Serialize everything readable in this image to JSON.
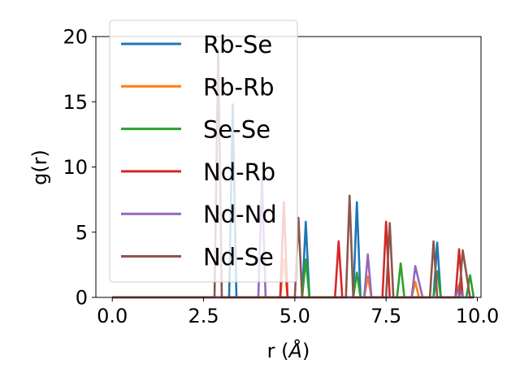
{
  "chart_data": {
    "type": "line",
    "xlabel": "r (",
    "xlabel_unit": "Å",
    "xlabel_end": ")",
    "ylabel": "g(r)",
    "xlim": [
      -0.45,
      10.1
    ],
    "ylim": [
      0,
      20
    ],
    "xticks": [
      0.0,
      2.5,
      5.0,
      7.5,
      10.0
    ],
    "xtick_labels": [
      "0.0",
      "2.5",
      "5.0",
      "7.5",
      "10.0"
    ],
    "yticks": [
      0,
      5,
      10,
      15,
      20
    ],
    "ytick_labels": [
      "0",
      "5",
      "10",
      "15",
      "20"
    ],
    "grid": false,
    "legend_position": "upper-left",
    "series": [
      {
        "name": "Rb-Se",
        "color": "#1f77b4",
        "points": [
          [
            0,
            0
          ],
          [
            3.2,
            0
          ],
          [
            3.3,
            14.8
          ],
          [
            3.4,
            0
          ],
          [
            5.2,
            0
          ],
          [
            5.3,
            5.8
          ],
          [
            5.4,
            0
          ],
          [
            6.6,
            0
          ],
          [
            6.7,
            7.3
          ],
          [
            6.8,
            0
          ],
          [
            8.8,
            0
          ],
          [
            8.9,
            4.2
          ],
          [
            9.0,
            0
          ],
          [
            9.9,
            0
          ]
        ]
      },
      {
        "name": "Rb-Rb",
        "color": "#ff7f0e",
        "points": [
          [
            0,
            0
          ],
          [
            4.6,
            0
          ],
          [
            4.7,
            2.9
          ],
          [
            4.8,
            0
          ],
          [
            6.9,
            0
          ],
          [
            7.0,
            1.6
          ],
          [
            7.1,
            0
          ],
          [
            8.2,
            0
          ],
          [
            8.3,
            1.2
          ],
          [
            8.4,
            0
          ],
          [
            9.4,
            0
          ],
          [
            9.5,
            1.0
          ],
          [
            9.6,
            0
          ],
          [
            9.9,
            0
          ]
        ]
      },
      {
        "name": "Se-Se",
        "color": "#2ca02c",
        "points": [
          [
            0,
            0
          ],
          [
            5.2,
            0
          ],
          [
            5.3,
            2.9
          ],
          [
            5.4,
            0
          ],
          [
            6.6,
            0
          ],
          [
            6.7,
            1.9
          ],
          [
            6.8,
            0
          ],
          [
            7.8,
            0
          ],
          [
            7.9,
            2.6
          ],
          [
            8.0,
            0
          ],
          [
            8.8,
            0
          ],
          [
            8.9,
            2.0
          ],
          [
            9.0,
            0
          ],
          [
            9.7,
            0
          ],
          [
            9.8,
            1.7
          ],
          [
            9.9,
            0
          ]
        ]
      },
      {
        "name": "Nd-Rb",
        "color": "#d62728",
        "points": [
          [
            0,
            0
          ],
          [
            4.6,
            0
          ],
          [
            4.7,
            7.3
          ],
          [
            4.8,
            0
          ],
          [
            6.1,
            0
          ],
          [
            6.2,
            4.3
          ],
          [
            6.3,
            0
          ],
          [
            7.4,
            0
          ],
          [
            7.5,
            5.8
          ],
          [
            7.6,
            0
          ],
          [
            9.4,
            0
          ],
          [
            9.5,
            3.7
          ],
          [
            9.6,
            0
          ],
          [
            9.9,
            0
          ]
        ]
      },
      {
        "name": "Nd-Nd",
        "color": "#9467bd",
        "points": [
          [
            0,
            0
          ],
          [
            4.0,
            0
          ],
          [
            4.1,
            9.0
          ],
          [
            4.2,
            0
          ],
          [
            6.9,
            0
          ],
          [
            7.0,
            3.3
          ],
          [
            7.1,
            0
          ],
          [
            8.2,
            0
          ],
          [
            8.3,
            2.4
          ],
          [
            8.5,
            0
          ],
          [
            9.4,
            0
          ],
          [
            9.5,
            0.8
          ],
          [
            9.6,
            0
          ],
          [
            9.9,
            0
          ]
        ]
      },
      {
        "name": "Nd-Se",
        "color": "#8c564b",
        "points": [
          [
            0,
            0
          ],
          [
            2.8,
            0
          ],
          [
            2.9,
            19.0
          ],
          [
            3.0,
            0
          ],
          [
            5.0,
            0
          ],
          [
            5.1,
            6.1
          ],
          [
            5.2,
            0
          ],
          [
            6.4,
            0
          ],
          [
            6.5,
            7.8
          ],
          [
            6.6,
            0
          ],
          [
            7.5,
            0
          ],
          [
            7.6,
            5.7
          ],
          [
            7.7,
            0
          ],
          [
            8.7,
            0
          ],
          [
            8.8,
            4.3
          ],
          [
            8.9,
            0
          ],
          [
            9.5,
            0
          ],
          [
            9.6,
            3.6
          ],
          [
            9.8,
            0
          ],
          [
            9.9,
            0
          ]
        ]
      }
    ]
  }
}
